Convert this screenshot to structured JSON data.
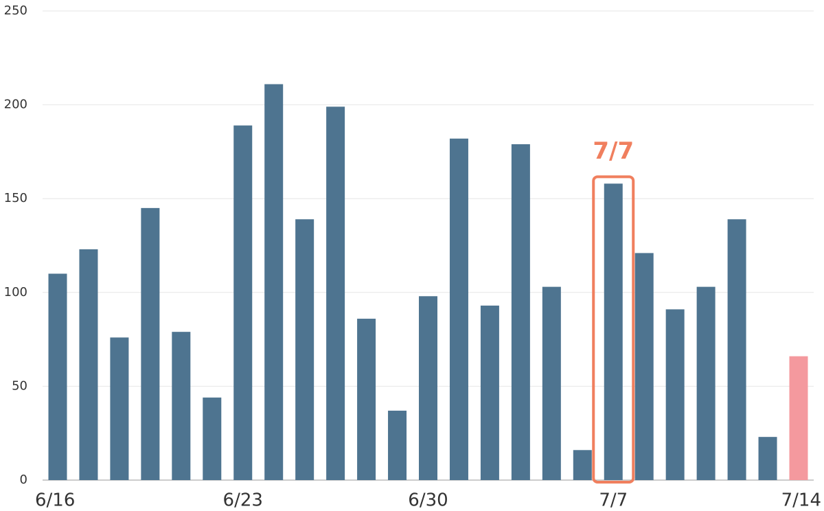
{
  "chart_data": {
    "type": "bar",
    "categories": [
      "6/16",
      null,
      null,
      null,
      null,
      null,
      "6/23",
      null,
      null,
      null,
      null,
      null,
      "6/30",
      null,
      null,
      null,
      null,
      null,
      "7/7",
      null,
      null,
      null,
      null,
      null,
      "7/14"
    ],
    "values": [
      110,
      123,
      76,
      145,
      79,
      44,
      189,
      211,
      139,
      199,
      86,
      37,
      98,
      182,
      93,
      179,
      103,
      16,
      158,
      121,
      91,
      103,
      139,
      23,
      66
    ],
    "colors": [
      "#4e7490",
      "#4e7490",
      "#4e7490",
      "#4e7490",
      "#4e7490",
      "#4e7490",
      "#4e7490",
      "#4e7490",
      "#4e7490",
      "#4e7490",
      "#4e7490",
      "#4e7490",
      "#4e7490",
      "#4e7490",
      "#4e7490",
      "#4e7490",
      "#4e7490",
      "#4e7490",
      "#4e7490",
      "#4e7490",
      "#4e7490",
      "#4e7490",
      "#4e7490",
      "#4e7490",
      "#f4999e"
    ],
    "annotation": "7/7",
    "annotation_color": "#f07f5e",
    "ylim": [
      0,
      250
    ],
    "yticks": [
      0,
      50,
      100,
      150,
      200,
      250
    ],
    "grid": true
  }
}
